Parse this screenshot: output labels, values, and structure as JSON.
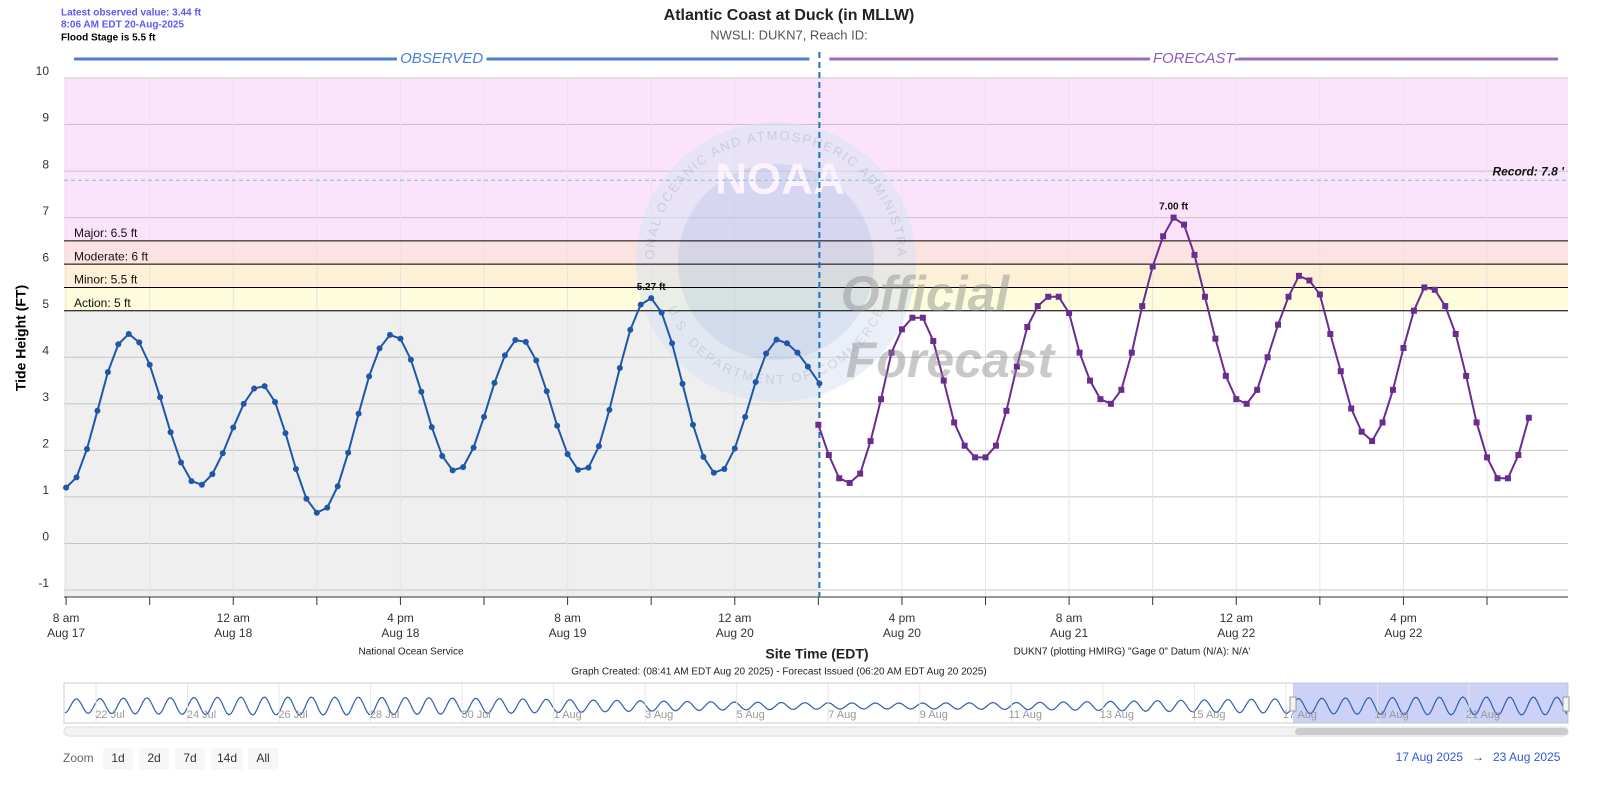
{
  "chart_data": {
    "type": "line",
    "title": "Atlantic Coast at Duck (in MLLW)",
    "subtitle": "NWSLI: DUKN7, Reach ID:",
    "info": [
      "Latest observed value: 3.44 ft",
      "8:06 AM EDT 20-Aug-2025",
      "Flood Stage is 5.5 ft"
    ],
    "y_label": "Tide Height (FT)",
    "x_label": "Site Time (EDT)",
    "credits": {
      "left": "National Ocean Service",
      "right": "DUKN7 (plotting HMIRG) \"Gage 0\" Datum (N/A): N/A'",
      "created": "Graph Created: (08:41 AM EDT Aug 20 2025) - Forecast Issued (06:20 AM EDT Aug 20 2025)"
    },
    "watermark": {
      "logo": "NOAA",
      "seal_top": "NATIONAL OCEANIC AND ATMOSPHERIC ADMINISTRATION",
      "seal_bottom": "U.S. DEPARTMENT OF COMMERCE",
      "overlay": [
        "Official",
        "Forecast"
      ]
    },
    "ylim": [
      -1,
      10
    ],
    "yticks": [
      -1,
      0,
      1,
      2,
      3,
      4,
      5,
      6,
      7,
      8,
      9,
      10
    ],
    "xlim": [
      "2025-08-17T07:48",
      "2025-08-23T07:45"
    ],
    "xticks": [
      {
        "value": "2025-08-17T08:00",
        "label": [
          "8 am",
          "Aug 17"
        ]
      },
      {
        "value": "2025-08-18T00:00",
        "label": [
          "12 am",
          "Aug 18"
        ]
      },
      {
        "value": "2025-08-18T16:00",
        "label": [
          "4 pm",
          "Aug 18"
        ]
      },
      {
        "value": "2025-08-19T08:00",
        "label": [
          "8 am",
          "Aug 19"
        ]
      },
      {
        "value": "2025-08-20T00:00",
        "label": [
          "12 am",
          "Aug 20"
        ]
      },
      {
        "value": "2025-08-20T16:00",
        "label": [
          "4 pm",
          "Aug 20"
        ]
      },
      {
        "value": "2025-08-21T08:00",
        "label": [
          "8 am",
          "Aug 21"
        ]
      },
      {
        "value": "2025-08-22T00:00",
        "label": [
          "12 am",
          "Aug 22"
        ]
      },
      {
        "value": "2025-08-22T16:00",
        "label": [
          "4 pm",
          "Aug 22"
        ]
      }
    ],
    "x_minor_ticks": [
      "2025-08-17T16:00",
      "2025-08-18T08:00",
      "2025-08-19T00:00",
      "2025-08-19T16:00",
      "2025-08-20T08:00",
      "2025-08-21T00:00",
      "2025-08-21T16:00",
      "2025-08-22T08:00",
      "2025-08-23T00:00"
    ],
    "grid": true,
    "flood_categories": [
      {
        "name": "Major: 6.5 ft",
        "value": 6.5,
        "color": "#fbe4fb"
      },
      {
        "name": "Moderate: 6 ft",
        "value": 6,
        "color": "#fde2e2"
      },
      {
        "name": "Minor: 5.5 ft",
        "value": 5.5,
        "color": "#fdf0d6"
      },
      {
        "name": "Action: 5 ft",
        "value": 5,
        "color": "#fdfcdc"
      }
    ],
    "record": {
      "label": "Record: 7.8 '",
      "value": 7.8,
      "color": "#8ccbe8"
    },
    "series": [
      {
        "name": "OBSERVED",
        "color": "#1f56a8",
        "marker": "circle",
        "x": [
          "2025-08-17T08:00",
          "2025-08-17T09:00",
          "2025-08-17T10:00",
          "2025-08-17T11:00",
          "2025-08-17T12:00",
          "2025-08-17T13:00",
          "2025-08-17T14:00",
          "2025-08-17T15:00",
          "2025-08-17T16:00",
          "2025-08-17T17:00",
          "2025-08-17T18:00",
          "2025-08-17T19:00",
          "2025-08-17T20:00",
          "2025-08-17T21:00",
          "2025-08-17T22:00",
          "2025-08-17T23:00",
          "2025-08-18T00:00",
          "2025-08-18T01:00",
          "2025-08-18T02:00",
          "2025-08-18T03:00",
          "2025-08-18T04:00",
          "2025-08-18T05:00",
          "2025-08-18T06:00",
          "2025-08-18T07:00",
          "2025-08-18T08:00",
          "2025-08-18T09:00",
          "2025-08-18T10:00",
          "2025-08-18T11:00",
          "2025-08-18T12:00",
          "2025-08-18T13:00",
          "2025-08-18T14:00",
          "2025-08-18T15:00",
          "2025-08-18T16:00",
          "2025-08-18T17:00",
          "2025-08-18T18:00",
          "2025-08-18T19:00",
          "2025-08-18T20:00",
          "2025-08-18T21:00",
          "2025-08-18T22:00",
          "2025-08-18T23:00",
          "2025-08-19T00:00",
          "2025-08-19T01:00",
          "2025-08-19T02:00",
          "2025-08-19T03:00",
          "2025-08-19T04:00",
          "2025-08-19T05:00",
          "2025-08-19T06:00",
          "2025-08-19T07:00",
          "2025-08-19T08:00",
          "2025-08-19T09:00",
          "2025-08-19T10:00",
          "2025-08-19T11:00",
          "2025-08-19T12:00",
          "2025-08-19T13:00",
          "2025-08-19T14:00",
          "2025-08-19T15:00",
          "2025-08-19T16:00",
          "2025-08-19T17:00",
          "2025-08-19T18:00",
          "2025-08-19T19:00",
          "2025-08-19T20:00",
          "2025-08-19T21:00",
          "2025-08-19T22:00",
          "2025-08-19T23:00",
          "2025-08-20T00:00",
          "2025-08-20T01:00",
          "2025-08-20T02:00",
          "2025-08-20T03:00",
          "2025-08-20T04:00",
          "2025-08-20T05:00",
          "2025-08-20T06:00",
          "2025-08-20T07:00",
          "2025-08-20T08:06"
        ],
        "values": [
          1.2,
          1.42,
          2.03,
          2.85,
          3.68,
          4.28,
          4.5,
          4.32,
          3.84,
          3.14,
          2.39,
          1.74,
          1.34,
          1.26,
          1.49,
          1.94,
          2.49,
          3.0,
          3.33,
          3.38,
          3.04,
          2.37,
          1.6,
          0.96,
          0.66,
          0.77,
          1.23,
          1.95,
          2.79,
          3.59,
          4.19,
          4.48,
          4.4,
          3.95,
          3.26,
          2.5,
          1.88,
          1.57,
          1.64,
          2.06,
          2.72,
          3.45,
          4.04,
          4.37,
          4.33,
          3.93,
          3.27,
          2.53,
          1.92,
          1.58,
          1.63,
          2.09,
          2.87,
          3.77,
          4.59,
          5.13,
          5.27,
          4.96,
          4.3,
          3.43,
          2.55,
          1.86,
          1.52,
          1.6,
          2.04,
          2.72,
          3.47,
          4.08,
          4.38,
          4.3,
          4.1,
          3.8,
          3.44
        ],
        "value_labels": [
          null,
          null,
          null,
          null,
          null,
          null,
          null,
          null,
          null,
          null,
          null,
          null,
          null,
          null,
          null,
          null,
          null,
          null,
          null,
          null,
          null,
          null,
          null,
          null,
          null,
          null,
          null,
          null,
          null,
          null,
          null,
          null,
          null,
          null,
          null,
          null,
          null,
          null,
          null,
          null,
          null,
          null,
          null,
          null,
          null,
          null,
          null,
          null,
          null,
          null,
          null,
          null,
          null,
          null,
          null,
          null,
          "5.27 ft",
          null,
          null,
          null,
          null,
          null,
          null,
          null,
          null,
          null,
          null,
          null,
          null,
          null,
          null,
          null,
          null
        ]
      },
      {
        "name": "FORECAST",
        "color": "#6a2d8f",
        "marker": "square",
        "x": [
          "2025-08-20T08:00",
          "2025-08-20T09:00",
          "2025-08-20T10:00",
          "2025-08-20T11:00",
          "2025-08-20T12:00",
          "2025-08-20T13:00",
          "2025-08-20T14:00",
          "2025-08-20T15:00",
          "2025-08-20T16:00",
          "2025-08-20T17:00",
          "2025-08-20T18:00",
          "2025-08-20T19:00",
          "2025-08-20T20:00",
          "2025-08-20T21:00",
          "2025-08-20T22:00",
          "2025-08-20T23:00",
          "2025-08-21T00:00",
          "2025-08-21T01:00",
          "2025-08-21T02:00",
          "2025-08-21T03:00",
          "2025-08-21T04:00",
          "2025-08-21T05:00",
          "2025-08-21T06:00",
          "2025-08-21T07:00",
          "2025-08-21T08:00",
          "2025-08-21T09:00",
          "2025-08-21T10:00",
          "2025-08-21T11:00",
          "2025-08-21T12:00",
          "2025-08-21T13:00",
          "2025-08-21T14:00",
          "2025-08-21T15:00",
          "2025-08-21T16:00",
          "2025-08-21T17:00",
          "2025-08-21T18:00",
          "2025-08-21T19:00",
          "2025-08-21T20:00",
          "2025-08-21T21:00",
          "2025-08-21T22:00",
          "2025-08-21T23:00",
          "2025-08-22T00:00",
          "2025-08-22T01:00",
          "2025-08-22T02:00",
          "2025-08-22T03:00",
          "2025-08-22T04:00",
          "2025-08-22T05:00",
          "2025-08-22T06:00",
          "2025-08-22T07:00",
          "2025-08-22T08:00",
          "2025-08-22T09:00",
          "2025-08-22T10:00",
          "2025-08-22T11:00",
          "2025-08-22T12:00",
          "2025-08-22T13:00",
          "2025-08-22T14:00",
          "2025-08-22T15:00",
          "2025-08-22T16:00",
          "2025-08-22T17:00",
          "2025-08-22T18:00",
          "2025-08-22T19:00",
          "2025-08-22T20:00",
          "2025-08-22T21:00",
          "2025-08-22T22:00",
          "2025-08-22T23:00",
          "2025-08-23T00:00",
          "2025-08-23T01:00",
          "2025-08-23T02:00",
          "2025-08-23T03:00",
          "2025-08-23T04:00"
        ],
        "values": [
          2.55,
          1.9,
          1.4,
          1.3,
          1.5,
          2.2,
          3.1,
          4.1,
          4.6,
          4.85,
          4.85,
          4.35,
          3.5,
          2.6,
          2.1,
          1.85,
          1.85,
          2.1,
          2.85,
          3.8,
          4.65,
          5.1,
          5.3,
          5.3,
          4.95,
          4.1,
          3.5,
          3.1,
          3.0,
          3.3,
          4.1,
          5.1,
          5.95,
          6.6,
          7.0,
          6.85,
          6.2,
          5.3,
          4.4,
          3.6,
          3.1,
          3.0,
          3.3,
          4.0,
          4.7,
          5.3,
          5.75,
          5.65,
          5.35,
          4.5,
          3.7,
          2.9,
          2.4,
          2.2,
          2.6,
          3.3,
          4.2,
          5.0,
          5.5,
          5.45,
          5.1,
          4.5,
          3.6,
          2.6,
          1.85,
          1.4,
          1.4,
          1.9,
          2.7
        ],
        "value_labels": [
          null,
          null,
          null,
          null,
          null,
          null,
          null,
          null,
          null,
          null,
          null,
          null,
          null,
          null,
          null,
          null,
          null,
          null,
          null,
          null,
          null,
          null,
          null,
          null,
          null,
          null,
          null,
          null,
          null,
          null,
          null,
          null,
          null,
          null,
          "7.00 ft",
          null,
          null,
          null,
          null,
          null,
          null,
          null,
          null,
          null,
          null,
          null,
          null,
          null,
          null,
          null,
          null,
          null,
          null,
          null,
          null,
          null,
          null,
          null,
          null,
          null,
          null,
          null,
          null,
          null,
          null,
          null,
          null,
          null,
          null
        ]
      }
    ],
    "navigator": {
      "labels": [
        "22 Jul",
        "24 Jul",
        "26 Jul",
        "28 Jul",
        "30 Jul",
        "1 Aug",
        "3 Aug",
        "5 Aug",
        "7 Aug",
        "9 Aug",
        "11 Aug",
        "13 Aug",
        "15 Aug",
        "17 Aug",
        "19 Aug",
        "21 Aug"
      ]
    },
    "zoom": {
      "label": "Zoom",
      "buttons": [
        "1d",
        "2d",
        "7d",
        "14d",
        "All"
      ]
    },
    "range": {
      "from": "17 Aug 2025",
      "arrow": "→",
      "to": "23 Aug 2025"
    }
  }
}
